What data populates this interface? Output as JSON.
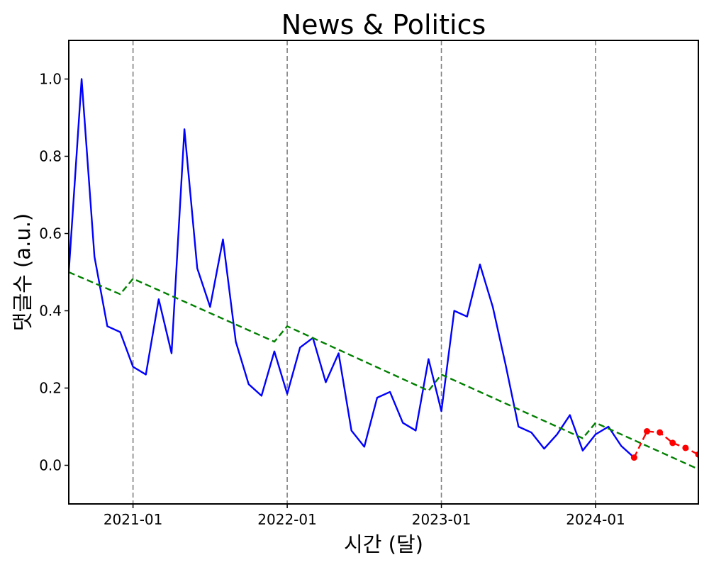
{
  "chart_data": {
    "type": "line",
    "title": "News & Politics",
    "xlabel": "시간 (달)",
    "ylabel": "댓글수 (a.u.)",
    "x_range": [
      "2020-08",
      "2024-09"
    ],
    "ylim": [
      -0.1,
      1.1
    ],
    "x_ticks": [
      "2021-01",
      "2022-01",
      "2023-01",
      "2024-01"
    ],
    "y_ticks": [
      "0.0",
      "0.2",
      "0.4",
      "0.6",
      "0.8",
      "1.0"
    ],
    "grid": false,
    "legend": "none",
    "vertical_reference_lines": [
      "2021-01",
      "2022-01",
      "2023-01",
      "2024-01"
    ],
    "series": [
      {
        "style": "solid",
        "color": "#0000ff",
        "points": [
          [
            "2020-08",
            0.5
          ],
          [
            "2020-09",
            1.0
          ],
          [
            "2020-10",
            0.54
          ],
          [
            "2020-11",
            0.36
          ],
          [
            "2020-12",
            0.345
          ],
          [
            "2021-01",
            0.255
          ],
          [
            "2021-02",
            0.235
          ],
          [
            "2021-03",
            0.43
          ],
          [
            "2021-04",
            0.29
          ],
          [
            "2021-05",
            0.87
          ],
          [
            "2021-06",
            0.51
          ],
          [
            "2021-07",
            0.41
          ],
          [
            "2021-08",
            0.585
          ],
          [
            "2021-09",
            0.32
          ],
          [
            "2021-10",
            0.21
          ],
          [
            "2021-11",
            0.18
          ],
          [
            "2021-12",
            0.295
          ],
          [
            "2022-01",
            0.185
          ],
          [
            "2022-02",
            0.305
          ],
          [
            "2022-03",
            0.33
          ],
          [
            "2022-04",
            0.215
          ],
          [
            "2022-05",
            0.29
          ],
          [
            "2022-06",
            0.09
          ],
          [
            "2022-07",
            0.048
          ],
          [
            "2022-08",
            0.175
          ],
          [
            "2022-09",
            0.19
          ],
          [
            "2022-10",
            0.11
          ],
          [
            "2022-11",
            0.09
          ],
          [
            "2022-12",
            0.275
          ],
          [
            "2023-01",
            0.14
          ],
          [
            "2023-02",
            0.4
          ],
          [
            "2023-03",
            0.385
          ],
          [
            "2023-04",
            0.52
          ],
          [
            "2023-05",
            0.41
          ],
          [
            "2023-06",
            0.26
          ],
          [
            "2023-07",
            0.1
          ],
          [
            "2023-08",
            0.085
          ],
          [
            "2023-09",
            0.043
          ],
          [
            "2023-10",
            0.08
          ],
          [
            "2023-11",
            0.13
          ],
          [
            "2023-12",
            0.038
          ],
          [
            "2024-01",
            0.08
          ],
          [
            "2024-02",
            0.1
          ],
          [
            "2024-03",
            0.05
          ],
          [
            "2024-04",
            0.02
          ]
        ]
      },
      {
        "style": "dashed",
        "color": "#008000",
        "points": [
          [
            "2020-08",
            0.5
          ],
          [
            "2020-12",
            0.443
          ],
          [
            "2021-01",
            0.483
          ],
          [
            "2021-12",
            0.32
          ],
          [
            "2022-01",
            0.36
          ],
          [
            "2022-12",
            0.193
          ],
          [
            "2023-01",
            0.235
          ],
          [
            "2023-12",
            0.07
          ],
          [
            "2024-01",
            0.11
          ],
          [
            "2024-09",
            -0.01
          ]
        ]
      },
      {
        "style": "dashed-markers",
        "color": "#ff0000",
        "points": [
          [
            "2024-04",
            0.02
          ],
          [
            "2024-05",
            0.088
          ],
          [
            "2024-06",
            0.085
          ],
          [
            "2024-07",
            0.058
          ],
          [
            "2024-08",
            0.045
          ],
          [
            "2024-09",
            0.028
          ]
        ]
      }
    ]
  }
}
